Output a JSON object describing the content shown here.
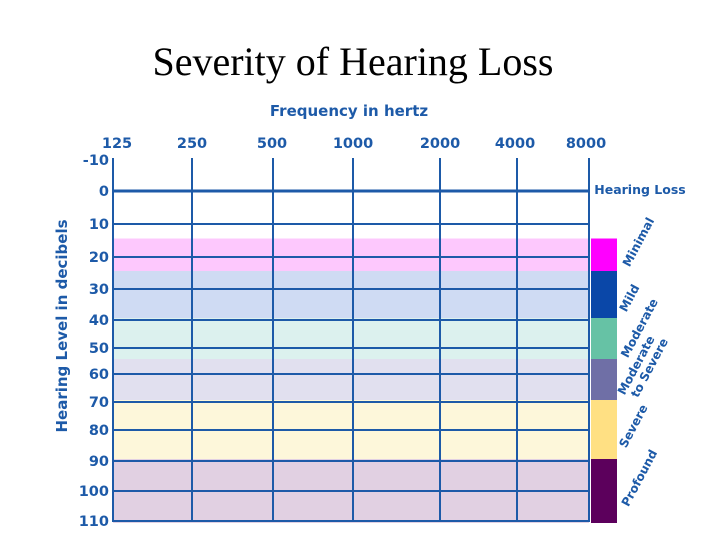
{
  "slide_title": "Severity of Hearing Loss",
  "chart_data": {
    "type": "table",
    "title": "",
    "xlabel": "Frequency in hertz",
    "ylabel": "Hearing Level in decibels",
    "x_ticks": [
      "125",
      "250",
      "500",
      "1000",
      "2000",
      "4000",
      "8000"
    ],
    "y_ticks": [
      "-10",
      "0",
      "10",
      "20",
      "30",
      "40",
      "50",
      "60",
      "70",
      "80",
      "90",
      "100",
      "110"
    ],
    "ylim": [
      -10,
      110
    ],
    "y_direction": "downward",
    "grid": true,
    "legend_title": "Hearing Loss",
    "legend_placement": "right",
    "bands": [
      {
        "label": "Minimal",
        "from_db": 15,
        "to_db": 25,
        "color": "#ff00ff",
        "fill": "#fdc8fd"
      },
      {
        "label": "Mild",
        "from_db": 25,
        "to_db": 40,
        "color": "#0a47a8",
        "fill": "#cfdbf3"
      },
      {
        "label": "Moderate",
        "from_db": 40,
        "to_db": 55,
        "color": "#66c2a5",
        "fill": "#dcf1ee"
      },
      {
        "label": "Moderate to Severe",
        "from_db": 55,
        "to_db": 70,
        "color": "#6f6fa6",
        "fill": "#e1e0ef"
      },
      {
        "label": "Severe",
        "from_db": 70,
        "to_db": 90,
        "color": "#ffe083",
        "fill": "#fdf7da"
      },
      {
        "label": "Profound",
        "from_db": 90,
        "to_db": 110,
        "color": "#5c005c",
        "fill": "#e1d0e2"
      }
    ],
    "colors": {
      "text": "#1d5aa8",
      "grid": "#1d5aa8"
    }
  }
}
